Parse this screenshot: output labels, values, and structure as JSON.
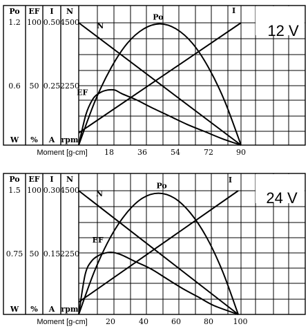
{
  "chart_data": [
    {
      "type": "line",
      "voltage_label": "12 V",
      "columns": [
        {
          "header": "Po",
          "top": "1.2",
          "mid": "0.6",
          "unit": "W"
        },
        {
          "header": "EF",
          "top": "100",
          "mid": "50",
          "unit": "%"
        },
        {
          "header": "I",
          "top": "0.50",
          "mid": "0.25",
          "unit": "A"
        },
        {
          "header": "N",
          "top": "4500",
          "mid": "2250",
          "unit": "rpm"
        }
      ],
      "xlabel": "Moment [g-cm]",
      "x_ticks": [
        "18",
        "36",
        "54",
        "72",
        "90"
      ],
      "xlim": [
        0,
        90
      ],
      "series": [
        {
          "name": "N",
          "x": [
            0,
            90
          ],
          "y": [
            4500,
            0
          ],
          "label_at": [
            12,
            4300
          ]
        },
        {
          "name": "Po",
          "x": [
            0,
            9,
            18,
            27,
            36,
            45,
            54,
            63,
            72,
            81,
            90
          ],
          "y": [
            0,
            0.43,
            0.76,
            1.0,
            1.14,
            1.19,
            1.14,
            1.0,
            0.76,
            0.43,
            0
          ],
          "label_at": [
            44,
            1.23
          ]
        },
        {
          "name": "I",
          "x": [
            0,
            90
          ],
          "y": [
            0.05,
            0.5
          ],
          "label_at": [
            86,
            0.54
          ]
        },
        {
          "name": "EF",
          "x": [
            0,
            4,
            8,
            12,
            16,
            20,
            24,
            32,
            40,
            50,
            60,
            70,
            80,
            90
          ],
          "y": [
            0,
            25,
            38,
            43,
            45,
            45,
            42,
            37,
            31,
            24,
            17,
            11,
            5,
            0
          ],
          "label_at": [
            2,
            41
          ]
        }
      ]
    },
    {
      "type": "line",
      "voltage_label": "24 V",
      "columns": [
        {
          "header": "Po",
          "top": "1.5",
          "mid": "0.75",
          "unit": "W"
        },
        {
          "header": "EF",
          "top": "100",
          "mid": "50",
          "unit": "%"
        },
        {
          "header": "I",
          "top": "0.30",
          "mid": "0.15",
          "unit": "A"
        },
        {
          "header": "N",
          "top": "4500",
          "mid": "2250",
          "unit": "rpm"
        }
      ],
      "xlabel": "Moment [g-cm]",
      "x_ticks": [
        "20",
        "40",
        "60",
        "80",
        "100"
      ],
      "xlim": [
        0,
        100
      ],
      "series": [
        {
          "name": "N",
          "x": [
            0,
            100
          ],
          "y": [
            4500,
            0
          ],
          "label_at": [
            13,
            4300
          ]
        },
        {
          "name": "Po",
          "x": [
            0,
            10,
            20,
            30,
            40,
            50,
            60,
            70,
            80,
            90,
            100
          ],
          "y": [
            0,
            0.53,
            0.94,
            1.23,
            1.41,
            1.47,
            1.41,
            1.23,
            0.94,
            0.53,
            0
          ],
          "label_at": [
            52,
            1.53
          ]
        },
        {
          "name": "I",
          "x": [
            0,
            100
          ],
          "y": [
            0.03,
            0.3
          ],
          "label_at": [
            95,
            0.32
          ]
        },
        {
          "name": "EF",
          "x": [
            0,
            4,
            8,
            13,
            18,
            22,
            27,
            35,
            45,
            55,
            65,
            75,
            85,
            100
          ],
          "y": [
            0,
            32,
            43,
            48,
            50,
            50,
            48,
            43,
            37,
            29,
            21,
            14,
            7,
            0
          ],
          "label_at": [
            12,
            58
          ]
        }
      ]
    }
  ]
}
